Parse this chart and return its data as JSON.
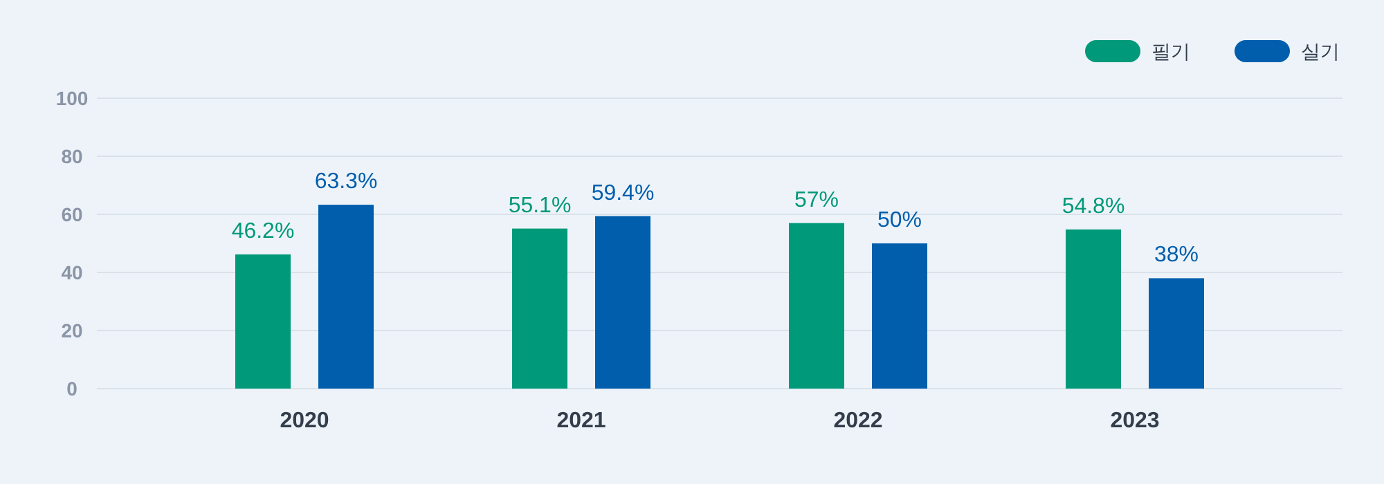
{
  "chart_data": {
    "type": "bar",
    "categories": [
      "2020",
      "2021",
      "2022",
      "2023"
    ],
    "series": [
      {
        "name": "필기",
        "color": "#00997a",
        "values": [
          46.2,
          55.1,
          57,
          54.8
        ],
        "value_labels": [
          "46.2%",
          "55.1%",
          "57%",
          "54.8%"
        ]
      },
      {
        "name": "실기",
        "color": "#005eac",
        "values": [
          63.3,
          59.4,
          50,
          38
        ],
        "value_labels": [
          "63.3%",
          "59.4%",
          "50%",
          "38%"
        ]
      }
    ],
    "ylim": [
      0,
      100
    ],
    "yticks": [
      0,
      20,
      40,
      60,
      80,
      100
    ],
    "grid": "y",
    "legend": "top right"
  }
}
